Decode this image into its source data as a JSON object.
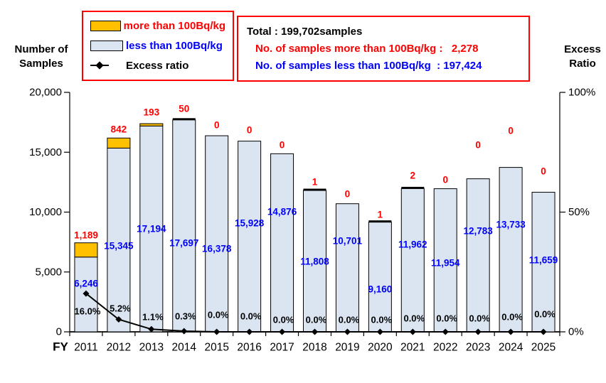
{
  "colors": {
    "accent_red": "#FF0000",
    "accent_blue": "#0000FF",
    "bar_more_fill": "#FFC000",
    "bar_less_fill": "#DAE5F1",
    "line_color": "#000000"
  },
  "axis_left": {
    "title_line1": "Number of",
    "title_line2": "Samples",
    "ticks": [
      "20,000",
      "15,000",
      "10,000",
      "5,000",
      "0"
    ]
  },
  "axis_right": {
    "title_line1": "Excess",
    "title_line2": "Ratio",
    "ticks": [
      "100%",
      "50%",
      "0%"
    ]
  },
  "x_axis_prefix": "FY",
  "legend": {
    "items": [
      {
        "label": "more than 100Bq/kg",
        "swatch_color": "#FFC000",
        "text_color": "#FF0000",
        "type": "box"
      },
      {
        "label": "less than 100Bq/kg",
        "swatch_color": "#DAE5F1",
        "text_color": "#0000FF",
        "type": "box"
      },
      {
        "label": "Excess ratio",
        "swatch_color": "#000000",
        "text_color": "#000000",
        "type": "line-marker"
      }
    ]
  },
  "info_box": {
    "line1": "Total : 199,702samples",
    "line2": "No. of samples more than 100Bq/kg :   2,278",
    "line3": "No. of samples less than 100Bq/kg  : 197,424"
  },
  "chart_data": {
    "type": "bar",
    "stacked": true,
    "grid": false,
    "categories": [
      "2011",
      "2012",
      "2013",
      "2014",
      "2015",
      "2016",
      "2017",
      "2018",
      "2019",
      "2020",
      "2021",
      "2022",
      "2023",
      "2024",
      "2025"
    ],
    "series": [
      {
        "name": "less than 100Bq/kg",
        "color": "#DAE5F1",
        "label_color": "#0000FF",
        "values": [
          6246,
          15345,
          17194,
          17697,
          16378,
          15928,
          14876,
          11808,
          10701,
          9160,
          11962,
          11954,
          12783,
          13733,
          11659
        ],
        "labels": [
          "6,246",
          "15,345",
          "17,194",
          "17,697",
          "16,378",
          "15,928",
          "14,876",
          "11,808",
          "10,701",
          "9,160",
          "11,962",
          "11,954",
          "12,783",
          "13,733",
          "11,659"
        ]
      },
      {
        "name": "more than 100Bq/kg",
        "color": "#FFC000",
        "label_color": "#FF0000",
        "values": [
          1189,
          842,
          193,
          50,
          0,
          0,
          0,
          1,
          0,
          1,
          2,
          0,
          0,
          0,
          0
        ],
        "labels": [
          "1,189",
          "842",
          "193",
          "50",
          "0",
          "0",
          "0",
          "1",
          "0",
          "1",
          "2",
          "0",
          "0",
          "0",
          "0"
        ]
      }
    ],
    "line_series": {
      "name": "Excess ratio",
      "color": "#000000",
      "axis": "right",
      "values_pct": [
        16.0,
        5.2,
        1.1,
        0.3,
        0.0,
        0.0,
        0.0,
        0.0,
        0.0,
        0.0,
        0.0,
        0.0,
        0.0,
        0.0,
        0.0
      ],
      "labels": [
        "16.0%",
        "5.2%",
        "1.1%",
        "0.3%",
        "0.0%",
        "0.0%",
        "0.0%",
        "0.0%",
        "0.0%",
        "0.0%",
        "0.0%",
        "0.0%",
        "0.0%",
        "0.0%",
        "0.0%"
      ]
    },
    "ylim_left": [
      0,
      20000
    ],
    "ylim_right_pct": [
      0,
      100
    ],
    "legend_position": "top-left",
    "layout": {
      "blue_label_y": [
        399,
        346,
        322,
        342,
        350,
        314,
        298,
        368,
        339,
        407,
        344,
        370,
        325,
        316,
        366
      ],
      "red_label_y": [
        331,
        182,
        158,
        153,
        176,
        183,
        204,
        256,
        273,
        302,
        247,
        253,
        204,
        184,
        241
      ],
      "pct_label_y": [
        438,
        434,
        446,
        445,
        443,
        445,
        450,
        450,
        450,
        450,
        448,
        448,
        448,
        446,
        442
      ]
    }
  }
}
